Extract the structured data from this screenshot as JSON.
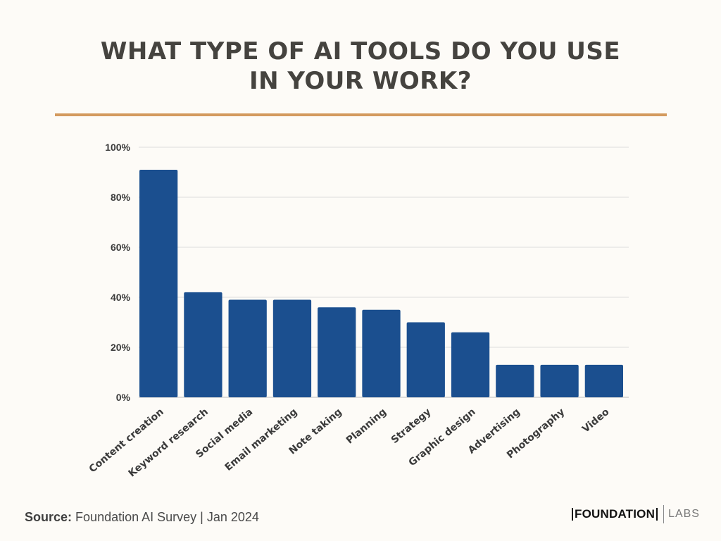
{
  "title": {
    "line1": "WHAT TYPE OF AI TOOLS DO YOU USE",
    "line2": "IN YOUR WORK?"
  },
  "colors": {
    "bar": "#1b4f8f",
    "accent_rule": "#d39a5e",
    "grid": "#dddddd"
  },
  "chart_data": {
    "type": "bar",
    "title": "WHAT TYPE OF AI TOOLS DO YOU USE IN YOUR WORK?",
    "categories": [
      "Content creation",
      "Keyword research",
      "Social media",
      "Email marketing",
      "Note taking",
      "Planning",
      "Strategy",
      "Graphic design",
      "Advertising",
      "Photography",
      "Video"
    ],
    "values": [
      91,
      42,
      39,
      39,
      36,
      35,
      30,
      26,
      13,
      13,
      13
    ],
    "unit": "%",
    "ylim": [
      0,
      100
    ],
    "yticks": [
      0,
      20,
      40,
      60,
      80,
      100
    ],
    "ytick_labels": [
      "0%",
      "20%",
      "40%",
      "60%",
      "80%",
      "100%"
    ],
    "xlabel": "",
    "ylabel": "",
    "grid": true
  },
  "footer": {
    "source_label": "Source:",
    "source_text": "Foundation AI Survey | Jan 2024",
    "logo_main": "FOUNDATION",
    "logo_sub": "LABS"
  }
}
